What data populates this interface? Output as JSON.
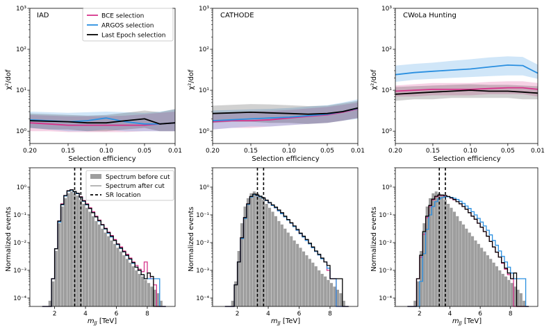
{
  "colors": {
    "bce": "#d6338a",
    "argos": "#2a8fe0",
    "last": "#000000",
    "before": "#9e9e9e",
    "after": "#9e9e9e"
  },
  "top_common": {
    "type": "line",
    "xlabel": "Selection efficiency",
    "ylabel": "χ²/dof",
    "xlim": [
      0.2,
      0.01
    ],
    "ylim": [
      0.5,
      1000
    ],
    "yscale": "log",
    "xticks": [
      "0.20",
      "0.15",
      "0.10",
      "0.05",
      "0.01"
    ],
    "yticks": [
      "10⁰",
      "10¹",
      "10²",
      "10³"
    ],
    "legend": [
      "BCE selection",
      "ARGOS selection",
      "Last Epoch selection"
    ]
  },
  "bottom_common": {
    "type": "histogram",
    "xlabel": "m_JJ [TeV]",
    "ylabel": "Normalized events",
    "ylim": [
      5e-05,
      5
    ],
    "yscale": "log",
    "xticks": [
      "2",
      "4",
      "6",
      "8"
    ],
    "yticks": [
      "10⁻⁴",
      "10⁻³",
      "10⁻²",
      "10⁻¹",
      "10⁰"
    ],
    "sr_location": [
      3.3,
      3.7
    ],
    "legend": [
      "Spectrum before cut",
      "Spectrum after cut",
      "SR location"
    ]
  },
  "chart_data": [
    {
      "panel": "top-left",
      "title": "IAD",
      "x": [
        0.2,
        0.175,
        0.15,
        0.125,
        0.1,
        0.075,
        0.05,
        0.03,
        0.01
      ],
      "series": [
        {
          "name": "BCE selection",
          "values": [
            1.6,
            1.5,
            1.4,
            1.4,
            1.4,
            1.4,
            1.4,
            1.5,
            1.6
          ],
          "low": [
            1.0,
            1.0,
            0.95,
            0.95,
            0.95,
            0.95,
            1.0,
            1.0,
            1.0
          ],
          "high": [
            2.5,
            2.4,
            2.3,
            2.3,
            2.3,
            2.4,
            2.6,
            2.8,
            3.0
          ]
        },
        {
          "name": "ARGOS selection",
          "values": [
            1.9,
            1.8,
            1.7,
            1.8,
            2.1,
            1.7,
            1.5,
            1.5,
            1.6
          ],
          "low": [
            1.2,
            1.1,
            1.0,
            1.0,
            1.1,
            1.0,
            1.0,
            1.0,
            1.0
          ],
          "high": [
            3.0,
            2.9,
            2.8,
            2.9,
            3.0,
            2.9,
            2.8,
            3.0,
            3.4
          ]
        },
        {
          "name": "Last Epoch selection",
          "values": [
            1.8,
            1.75,
            1.7,
            1.6,
            1.6,
            1.8,
            2.0,
            1.5,
            1.6
          ],
          "low": [
            1.2,
            1.1,
            1.1,
            1.0,
            1.0,
            1.1,
            1.2,
            1.0,
            1.0
          ],
          "high": [
            2.7,
            2.6,
            2.5,
            2.4,
            2.5,
            2.8,
            3.2,
            2.9,
            3.5
          ]
        }
      ]
    },
    {
      "panel": "top-middle",
      "title": "CATHODE",
      "x": [
        0.2,
        0.175,
        0.15,
        0.125,
        0.1,
        0.075,
        0.05,
        0.03,
        0.01
      ],
      "series": [
        {
          "name": "BCE selection",
          "values": [
            1.7,
            1.8,
            1.8,
            1.9,
            2.1,
            2.3,
            2.5,
            2.9,
            3.5
          ],
          "low": [
            1.1,
            1.2,
            1.2,
            1.3,
            1.4,
            1.5,
            1.6,
            1.8,
            2.1
          ],
          "high": [
            2.8,
            2.9,
            3.0,
            3.1,
            3.3,
            3.6,
            3.9,
            4.4,
            5.0
          ]
        },
        {
          "name": "ARGOS selection",
          "values": [
            1.8,
            1.9,
            2.0,
            2.1,
            2.2,
            2.4,
            2.6,
            3.0,
            3.6
          ],
          "low": [
            1.1,
            1.2,
            1.3,
            1.3,
            1.4,
            1.5,
            1.6,
            1.8,
            2.0
          ],
          "high": [
            3.2,
            3.3,
            3.4,
            3.5,
            3.7,
            4.0,
            4.3,
            5.0,
            6.0
          ]
        },
        {
          "name": "Last Epoch selection",
          "values": [
            2.7,
            2.8,
            2.9,
            2.8,
            2.7,
            2.6,
            2.7,
            3.0,
            3.7
          ],
          "low": [
            1.6,
            1.7,
            1.7,
            1.6,
            1.6,
            1.5,
            1.6,
            1.8,
            2.1
          ],
          "high": [
            4.2,
            4.4,
            4.6,
            4.5,
            4.3,
            4.1,
            4.2,
            4.8,
            5.5
          ]
        }
      ]
    },
    {
      "panel": "top-right",
      "title": "CWoLa Hunting",
      "x": [
        0.2,
        0.175,
        0.15,
        0.125,
        0.1,
        0.075,
        0.05,
        0.03,
        0.01
      ],
      "series": [
        {
          "name": "BCE selection",
          "values": [
            9.5,
            10,
            10.5,
            10.5,
            10.5,
            11,
            11.5,
            11.5,
            10.5
          ],
          "low": [
            7.0,
            7.0,
            7.5,
            7.5,
            7.5,
            8.0,
            8.0,
            8.0,
            7.0
          ],
          "high": [
            13,
            14,
            15,
            15,
            15,
            16,
            16.5,
            16.5,
            15
          ]
        },
        {
          "name": "ARGOS selection",
          "values": [
            24,
            27,
            29,
            31,
            33,
            37,
            41,
            40,
            26
          ],
          "low": [
            16,
            18,
            19,
            20,
            21,
            22,
            23,
            23,
            19
          ],
          "high": [
            40,
            44,
            47,
            52,
            57,
            63,
            67,
            65,
            42
          ]
        },
        {
          "name": "Last Epoch selection",
          "values": [
            8,
            8.5,
            9,
            9.5,
            10,
            9.5,
            9.5,
            9,
            8.5
          ],
          "low": [
            5.5,
            6.0,
            6.0,
            6.5,
            6.5,
            6.5,
            6.5,
            6.0,
            6.0
          ],
          "high": [
            12,
            12.5,
            13,
            13.5,
            14,
            13.5,
            13.5,
            13,
            12.5
          ]
        }
      ]
    },
    {
      "panel": "bottom-left",
      "title": "",
      "bin_start": 1.2,
      "bin_width": 0.2,
      "series": [
        {
          "name": "Spectrum before cut",
          "values": [
            5e-05,
            5e-05,
            8e-05,
            0.0004,
            0.005,
            0.05,
            0.2,
            0.4,
            0.6,
            0.7,
            0.6,
            0.5,
            0.35,
            0.25,
            0.18,
            0.13,
            0.09,
            0.06,
            0.045,
            0.032,
            0.023,
            0.017,
            0.012,
            0.009,
            0.0065,
            0.0048,
            0.0035,
            0.0026,
            0.0019,
            0.0014,
            0.001,
            0.00075,
            0.0006,
            0.00045,
            0.00035,
            0.00026,
            0.0002,
            0.00015,
            8e-05,
            5e-05
          ]
        },
        {
          "name": "BCE selection",
          "values": [
            5e-05,
            5e-05,
            5e-05,
            0.0005,
            0.006,
            0.06,
            0.25,
            0.5,
            0.75,
            0.8,
            0.7,
            0.6,
            0.45,
            0.33,
            0.25,
            0.18,
            0.13,
            0.09,
            0.065,
            0.045,
            0.033,
            0.024,
            0.018,
            0.013,
            0.009,
            0.007,
            0.005,
            0.0038,
            0.0028,
            0.002,
            0.0015,
            0.0011,
            0.0009,
            0.002,
            0.0008,
            0.0005,
            0.0003,
            5e-05,
            5e-05,
            5e-05
          ]
        },
        {
          "name": "ARGOS selection",
          "values": [
            5e-05,
            5e-05,
            5e-05,
            0.0005,
            0.006,
            0.055,
            0.23,
            0.48,
            0.72,
            0.78,
            0.68,
            0.58,
            0.43,
            0.31,
            0.23,
            0.17,
            0.12,
            0.085,
            0.06,
            0.043,
            0.031,
            0.022,
            0.016,
            0.012,
            0.0085,
            0.0062,
            0.0046,
            0.0034,
            0.0025,
            0.0018,
            0.0013,
            0.001,
            0.0007,
            0.0005,
            0.0005,
            0.0005,
            0.0005,
            0.0005,
            5e-05,
            5e-05
          ]
        },
        {
          "name": "Last Epoch selection",
          "values": [
            5e-05,
            5e-05,
            5e-05,
            0.0005,
            0.006,
            0.06,
            0.24,
            0.5,
            0.74,
            0.8,
            0.7,
            0.6,
            0.44,
            0.32,
            0.24,
            0.17,
            0.12,
            0.085,
            0.062,
            0.044,
            0.032,
            0.023,
            0.017,
            0.012,
            0.0088,
            0.0064,
            0.0047,
            0.0035,
            0.0026,
            0.0019,
            0.0013,
            0.001,
            0.0007,
            0.0005,
            0.0008,
            0.0006,
            5e-05,
            5e-05,
            5e-05,
            5e-05
          ]
        }
      ]
    },
    {
      "panel": "bottom-middle",
      "title": "",
      "bin_start": 1.2,
      "bin_width": 0.2,
      "series": [
        {
          "name": "Spectrum before cut",
          "values": [
            5e-05,
            5e-05,
            8e-05,
            0.0004,
            0.005,
            0.05,
            0.2,
            0.4,
            0.6,
            0.7,
            0.6,
            0.5,
            0.35,
            0.25,
            0.18,
            0.13,
            0.09,
            0.06,
            0.045,
            0.032,
            0.023,
            0.017,
            0.012,
            0.009,
            0.0065,
            0.0048,
            0.0035,
            0.0026,
            0.0019,
            0.0014,
            0.001,
            0.00075,
            0.0006,
            0.00045,
            0.00035,
            0.00026,
            0.0002,
            0.00015,
            8e-05,
            5e-05
          ]
        },
        {
          "name": "BCE selection",
          "values": [
            5e-05,
            5e-05,
            5e-05,
            0.0003,
            0.002,
            0.015,
            0.08,
            0.25,
            0.45,
            0.55,
            0.5,
            0.45,
            0.4,
            0.33,
            0.27,
            0.22,
            0.18,
            0.14,
            0.11,
            0.085,
            0.065,
            0.05,
            0.038,
            0.028,
            0.021,
            0.016,
            0.012,
            0.009,
            0.0065,
            0.0048,
            0.0036,
            0.0026,
            0.002,
            0.001,
            0.0005,
            0.0005,
            5e-05,
            5e-05,
            5e-05,
            5e-05
          ]
        },
        {
          "name": "ARGOS selection",
          "values": [
            5e-05,
            5e-05,
            5e-05,
            0.0003,
            0.002,
            0.014,
            0.075,
            0.24,
            0.44,
            0.54,
            0.5,
            0.45,
            0.4,
            0.33,
            0.27,
            0.22,
            0.18,
            0.14,
            0.11,
            0.085,
            0.065,
            0.05,
            0.038,
            0.028,
            0.021,
            0.016,
            0.012,
            0.009,
            0.0065,
            0.0048,
            0.0036,
            0.0026,
            0.002,
            0.0012,
            0.0005,
            0.0005,
            5e-05,
            5e-05,
            5e-05,
            5e-05
          ]
        },
        {
          "name": "Last Epoch selection",
          "values": [
            5e-05,
            5e-05,
            5e-05,
            0.0003,
            0.002,
            0.015,
            0.08,
            0.25,
            0.46,
            0.56,
            0.52,
            0.47,
            0.41,
            0.34,
            0.28,
            0.23,
            0.19,
            0.15,
            0.12,
            0.09,
            0.068,
            0.052,
            0.04,
            0.03,
            0.022,
            0.017,
            0.013,
            0.0095,
            0.007,
            0.005,
            0.0038,
            0.0028,
            0.002,
            0.0015,
            0.0005,
            0.0005,
            0.0005,
            0.0005,
            5e-05,
            5e-05
          ]
        }
      ]
    },
    {
      "panel": "bottom-right",
      "title": "",
      "bin_start": 1.2,
      "bin_width": 0.2,
      "series": [
        {
          "name": "Spectrum before cut",
          "values": [
            5e-05,
            5e-05,
            8e-05,
            0.0004,
            0.005,
            0.05,
            0.2,
            0.4,
            0.6,
            0.7,
            0.6,
            0.5,
            0.35,
            0.25,
            0.18,
            0.13,
            0.09,
            0.06,
            0.045,
            0.032,
            0.023,
            0.017,
            0.012,
            0.009,
            0.0065,
            0.0048,
            0.0035,
            0.0026,
            0.0019,
            0.0014,
            0.001,
            0.00075,
            0.0006,
            0.00045,
            0.00035,
            0.00026,
            0.0002,
            0.00015,
            8e-05,
            5e-05
          ]
        },
        {
          "name": "BCE selection",
          "values": [
            5e-05,
            5e-05,
            5e-05,
            0.0005,
            0.003,
            0.02,
            0.08,
            0.2,
            0.35,
            0.45,
            0.5,
            0.5,
            0.48,
            0.45,
            0.4,
            0.35,
            0.3,
            0.25,
            0.2,
            0.16,
            0.12,
            0.09,
            0.07,
            0.05,
            0.036,
            0.025,
            0.017,
            0.011,
            0.007,
            0.0045,
            0.003,
            0.0018,
            0.0011,
            0.0007,
            0.0005,
            5e-05,
            5e-05,
            5e-05,
            5e-05,
            5e-05
          ]
        },
        {
          "name": "ARGOS selection",
          "values": [
            5e-05,
            5e-05,
            5e-05,
            5e-05,
            0.0004,
            0.004,
            0.03,
            0.1,
            0.2,
            0.3,
            0.38,
            0.42,
            0.45,
            0.45,
            0.43,
            0.4,
            0.36,
            0.31,
            0.26,
            0.21,
            0.17,
            0.13,
            0.1,
            0.075,
            0.055,
            0.04,
            0.028,
            0.019,
            0.012,
            0.008,
            0.005,
            0.0032,
            0.002,
            0.0013,
            0.0008,
            0.0005,
            0.0005,
            0.0005,
            0.0005,
            5e-05
          ]
        },
        {
          "name": "Last Epoch selection",
          "values": [
            5e-05,
            5e-05,
            5e-05,
            0.0005,
            0.0035,
            0.025,
            0.09,
            0.22,
            0.37,
            0.47,
            0.52,
            0.52,
            0.5,
            0.46,
            0.41,
            0.36,
            0.3,
            0.25,
            0.2,
            0.16,
            0.12,
            0.09,
            0.07,
            0.05,
            0.036,
            0.025,
            0.017,
            0.011,
            0.007,
            0.0045,
            0.003,
            0.0019,
            0.0012,
            0.0008,
            0.0005,
            0.0008,
            5e-05,
            5e-05,
            5e-05,
            5e-05
          ]
        }
      ]
    }
  ]
}
